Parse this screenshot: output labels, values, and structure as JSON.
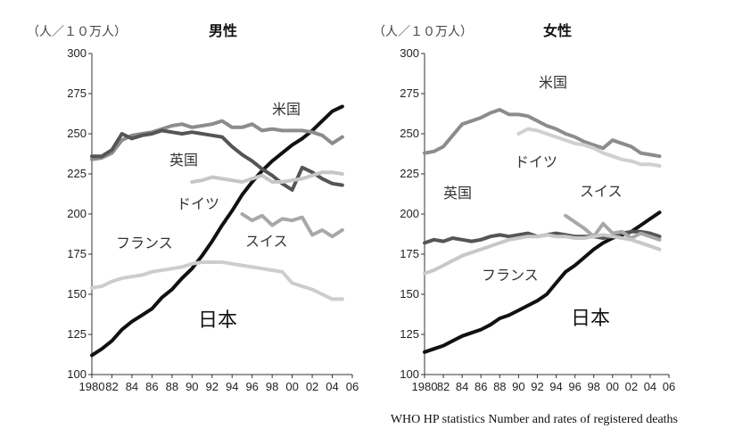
{
  "source": "WHO HP statistics Number and rates of registered deaths",
  "unit_label": "（人／１０万人）",
  "chart_data": [
    {
      "type": "line",
      "title": "男性",
      "ylabel": "（人／１０万人）",
      "ylim": [
        100,
        300
      ],
      "xlim": [
        1980,
        2006
      ],
      "yticks": [
        100,
        125,
        150,
        175,
        200,
        225,
        250,
        275,
        300
      ],
      "xtick_labels": [
        "1980",
        "82",
        "84",
        "86",
        "88",
        "90",
        "92",
        "94",
        "96",
        "98",
        "00",
        "02",
        "04",
        "06"
      ],
      "series": [
        {
          "name": "日本",
          "color": "#111111",
          "width": 4,
          "x": [
            1980,
            1981,
            1982,
            1983,
            1984,
            1985,
            1986,
            1987,
            1988,
            1989,
            1990,
            1991,
            1992,
            1993,
            1994,
            1995,
            1996,
            1997,
            1998,
            1999,
            2000,
            2001,
            2002,
            2003,
            2004,
            2005
          ],
          "values": [
            112,
            116,
            121,
            128,
            133,
            137,
            141,
            148,
            153,
            160,
            166,
            174,
            183,
            193,
            202,
            212,
            220,
            227,
            233,
            238,
            243,
            247,
            252,
            258,
            264,
            267
          ]
        },
        {
          "name": "米国",
          "color": "#8c8c8c",
          "width": 4,
          "x": [
            1980,
            1981,
            1982,
            1983,
            1984,
            1985,
            1986,
            1987,
            1988,
            1989,
            1990,
            1991,
            1992,
            1993,
            1994,
            1995,
            1996,
            1997,
            1998,
            1999,
            2000,
            2001,
            2002,
            2003,
            2004,
            2005
          ],
          "values": [
            234,
            235,
            238,
            246,
            249,
            250,
            251,
            253,
            255,
            256,
            254,
            255,
            256,
            258,
            254,
            254,
            256,
            252,
            253,
            252,
            252,
            252,
            251,
            249,
            244,
            248
          ]
        },
        {
          "name": "英国",
          "color": "#555555",
          "width": 4,
          "x": [
            1980,
            1981,
            1982,
            1983,
            1984,
            1985,
            1986,
            1987,
            1988,
            1989,
            1990,
            1991,
            1992,
            1993,
            1994,
            1995,
            1996,
            1997,
            1998,
            1999,
            2000,
            2001,
            2002,
            2003,
            2004,
            2005
          ],
          "values": [
            236,
            236,
            240,
            250,
            247,
            249,
            250,
            252,
            251,
            250,
            251,
            250,
            249,
            248,
            242,
            237,
            233,
            228,
            224,
            219,
            215,
            229,
            226,
            222,
            219,
            218
          ]
        },
        {
          "name": "ドイツ",
          "color": "#c6c6c6",
          "width": 4,
          "x": [
            1990,
            1991,
            1992,
            1993,
            1994,
            1995,
            1996,
            1997,
            1998,
            1999,
            2000,
            2001,
            2002,
            2003,
            2004,
            2005
          ],
          "values": [
            220,
            221,
            223,
            222,
            221,
            220,
            222,
            224,
            220,
            220,
            221,
            222,
            224,
            226,
            226,
            225
          ]
        },
        {
          "name": "スイス",
          "color": "#a8a8a8",
          "width": 4,
          "x": [
            1995,
            1996,
            1997,
            1998,
            1999,
            2000,
            2001,
            2002,
            2003,
            2004,
            2005
          ],
          "values": [
            200,
            196,
            199,
            193,
            197,
            196,
            198,
            187,
            190,
            186,
            190
          ]
        },
        {
          "name": "フランス",
          "color": "#cdcdcd",
          "width": 4,
          "x": [
            1980,
            1981,
            1982,
            1983,
            1984,
            1985,
            1986,
            1987,
            1988,
            1989,
            1990,
            1991,
            1992,
            1993,
            1994,
            1995,
            1996,
            1997,
            1998,
            1999,
            2000,
            2001,
            2002,
            2003,
            2004,
            2005
          ],
          "values": [
            154,
            155,
            158,
            160,
            161,
            162,
            164,
            165,
            166,
            167,
            169,
            170,
            170,
            170,
            169,
            168,
            167,
            166,
            165,
            164,
            157,
            155,
            153,
            150,
            147,
            147
          ]
        }
      ],
      "annotations": [
        "米国",
        "英国",
        "ドイツ",
        "スイス",
        "フランス",
        "日本"
      ]
    },
    {
      "type": "line",
      "title": "女性",
      "ylabel": "（人／１０万人）",
      "ylim": [
        100,
        300
      ],
      "xlim": [
        1980,
        2006
      ],
      "yticks": [
        100,
        125,
        150,
        175,
        200,
        225,
        250,
        275,
        300
      ],
      "xtick_labels": [
        "1980",
        "82",
        "84",
        "86",
        "88",
        "90",
        "92",
        "94",
        "96",
        "98",
        "00",
        "02",
        "04",
        "06"
      ],
      "series": [
        {
          "name": "日本",
          "color": "#111111",
          "width": 4,
          "x": [
            1980,
            1981,
            1982,
            1983,
            1984,
            1985,
            1986,
            1987,
            1988,
            1989,
            1990,
            1991,
            1992,
            1993,
            1994,
            1995,
            1996,
            1997,
            1998,
            1999,
            2000,
            2001,
            2002,
            2003,
            2004,
            2005
          ],
          "values": [
            114,
            116,
            118,
            121,
            124,
            126,
            128,
            131,
            135,
            137,
            140,
            143,
            146,
            150,
            157,
            164,
            168,
            173,
            178,
            182,
            185,
            187,
            189,
            193,
            197,
            201
          ]
        },
        {
          "name": "米国",
          "color": "#8c8c8c",
          "width": 4,
          "x": [
            1980,
            1981,
            1982,
            1983,
            1984,
            1985,
            1986,
            1987,
            1988,
            1989,
            1990,
            1991,
            1992,
            1993,
            1994,
            1995,
            1996,
            1997,
            1998,
            1999,
            2000,
            2001,
            2002,
            2003,
            2004,
            2005
          ],
          "values": [
            238,
            239,
            242,
            249,
            256,
            258,
            260,
            263,
            265,
            262,
            262,
            261,
            258,
            255,
            253,
            250,
            248,
            245,
            243,
            241,
            246,
            244,
            242,
            238,
            237,
            236
          ]
        },
        {
          "name": "ドイツ",
          "color": "#d0d0d0",
          "width": 4,
          "x": [
            1990,
            1991,
            1992,
            1993,
            1994,
            1995,
            1996,
            1997,
            1998,
            1999,
            2000,
            2001,
            2002,
            2003,
            2004,
            2005
          ],
          "values": [
            250,
            253,
            252,
            250,
            248,
            246,
            244,
            243,
            241,
            238,
            236,
            234,
            233,
            231,
            231,
            230
          ]
        },
        {
          "name": "英国",
          "color": "#555555",
          "width": 4,
          "x": [
            1980,
            1981,
            1982,
            1983,
            1984,
            1985,
            1986,
            1987,
            1988,
            1989,
            1990,
            1991,
            1992,
            1993,
            1994,
            1995,
            1996,
            1997,
            1998,
            1999,
            2000,
            2001,
            2002,
            2003,
            2004,
            2005
          ],
          "values": [
            182,
            184,
            183,
            185,
            184,
            183,
            184,
            186,
            187,
            186,
            187,
            188,
            186,
            187,
            188,
            187,
            186,
            186,
            186,
            185,
            186,
            188,
            189,
            189,
            188,
            186
          ]
        },
        {
          "name": "スイス",
          "color": "#a8a8a8",
          "width": 4,
          "x": [
            1995,
            1996,
            1997,
            1998,
            1999,
            2000,
            2001,
            2002,
            2003,
            2004,
            2005
          ],
          "values": [
            199,
            195,
            191,
            186,
            194,
            188,
            189,
            185,
            188,
            186,
            184
          ]
        },
        {
          "name": "フランス",
          "color": "#c8c8c8",
          "width": 4,
          "x": [
            1980,
            1981,
            1982,
            1983,
            1984,
            1985,
            1986,
            1987,
            1988,
            1989,
            1990,
            1991,
            1992,
            1993,
            1994,
            1995,
            1996,
            1997,
            1998,
            1999,
            2000,
            2001,
            2002,
            2003,
            2004,
            2005
          ],
          "values": [
            163,
            165,
            168,
            171,
            174,
            176,
            178,
            180,
            182,
            184,
            185,
            186,
            186,
            187,
            186,
            186,
            185,
            185,
            186,
            187,
            186,
            185,
            184,
            182,
            180,
            178
          ]
        }
      ],
      "annotations": [
        "米国",
        "ドイツ",
        "スイス",
        "英国",
        "フランス",
        "日本"
      ]
    }
  ]
}
